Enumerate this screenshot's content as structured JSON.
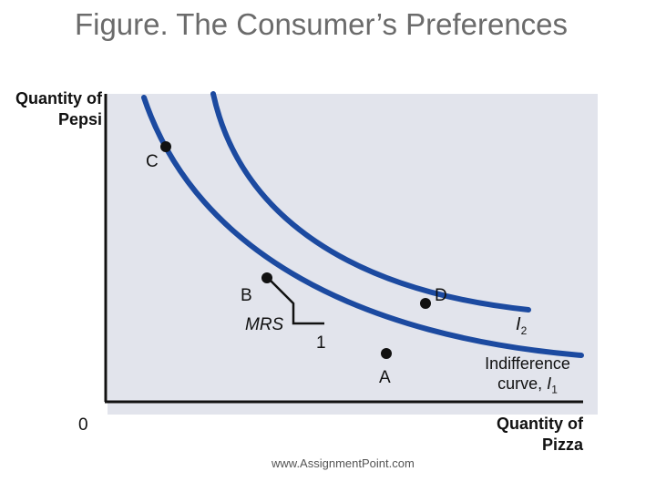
{
  "title": "Figure. The Consumer’s Preferences",
  "axes": {
    "y_label": "Quantity of Pepsi",
    "x_label": "Quantity of Pizza",
    "origin": "0"
  },
  "points": {
    "C": "C",
    "B": "B",
    "D": "D",
    "A": "A"
  },
  "annotations": {
    "mrs": "MRS",
    "one": "1",
    "i2_main": "I",
    "i2_sub": "2",
    "i1_line1": "Indifference",
    "i1_line2": "curve,",
    "i1_main": "I",
    "i1_sub": "1"
  },
  "colors": {
    "curve": "#1c4aa0",
    "point": "#111111",
    "plot_background": "#e2e4ec",
    "title": "#6b6b6b"
  },
  "watermark": "www.AssignmentPoint.com"
}
